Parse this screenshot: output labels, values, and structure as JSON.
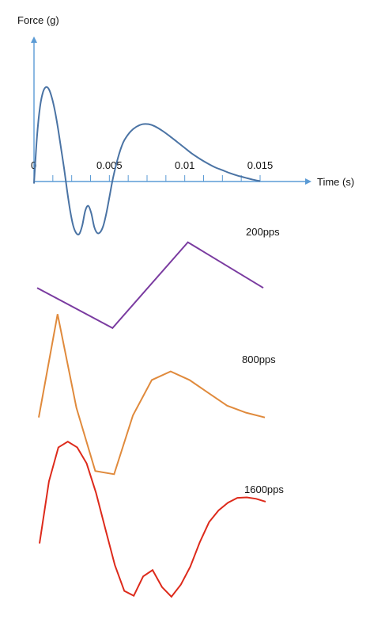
{
  "chart_data": [
    {
      "type": "line",
      "xlabel": "Time (s)",
      "ylabel": "Force (g)",
      "x_tick_labels": [
        {
          "x": 0,
          "label": "0"
        },
        {
          "x": 0.005,
          "label": "0.005"
        },
        {
          "x": 0.01,
          "label": "0.01"
        },
        {
          "x": 0.015,
          "label": "0.015"
        }
      ],
      "x_minor_ticks": [
        0.00125,
        0.0025,
        0.00375,
        0.005,
        0.00625,
        0.0075,
        0.00875,
        0.01,
        0.01125,
        0.0125,
        0.01375,
        0.015
      ],
      "xlim": [
        0,
        0.0175
      ],
      "ylim": [
        -1.0,
        2.3
      ],
      "grid": false,
      "color": "#4a73a4",
      "series": [
        {
          "x": [
            0,
            0.0002,
            0.0004,
            0.0006,
            0.0008,
            0.001,
            0.0012,
            0.0014,
            0.0016,
            0.0018,
            0.002,
            0.0022,
            0.0024,
            0.0026,
            0.0028,
            0.003,
            0.0032,
            0.0034,
            0.0036,
            0.0038,
            0.004,
            0.0042,
            0.0044,
            0.0046,
            0.0048,
            0.005,
            0.0052,
            0.0054,
            0.0056,
            0.0058,
            0.006,
            0.0064,
            0.0068,
            0.0072,
            0.0076,
            0.008,
            0.0085,
            0.009,
            0.0095,
            0.01,
            0.0105,
            0.011,
            0.0115,
            0.012,
            0.0125,
            0.013,
            0.0135,
            0.014,
            0.0145,
            0.015
          ],
          "values": [
            0,
            0.95,
            1.55,
            1.85,
            1.95,
            1.9,
            1.72,
            1.45,
            1.1,
            0.7,
            0.3,
            -0.15,
            -0.55,
            -0.85,
            -1.0,
            -1.02,
            -0.85,
            -0.55,
            -0.45,
            -0.6,
            -0.88,
            -1.0,
            -0.98,
            -0.85,
            -0.6,
            -0.28,
            0.05,
            0.32,
            0.55,
            0.74,
            0.88,
            1.05,
            1.15,
            1.2,
            1.2,
            1.16,
            1.07,
            0.96,
            0.84,
            0.72,
            0.6,
            0.5,
            0.41,
            0.33,
            0.27,
            0.21,
            0.16,
            0.12,
            0.08,
            0.05
          ]
        }
      ]
    },
    {
      "type": "line",
      "title": "200pps",
      "color": "#7a3ba0",
      "axes_visible": false,
      "xlim": [
        0,
        0.015
      ],
      "ylim": [
        -0.9,
        1.15
      ],
      "series": [
        {
          "x": [
            0,
            0.005,
            0.01,
            0.015
          ],
          "values": [
            0,
            -0.88,
            1.0,
            0
          ]
        }
      ]
    },
    {
      "type": "line",
      "title": "800pps",
      "color": "#e08a3c",
      "axes_visible": false,
      "xlim": [
        0,
        0.015
      ],
      "ylim": [
        -1.1,
        1.95
      ],
      "series": [
        {
          "x": [
            0,
            0.00125,
            0.0025,
            0.00375,
            0.005,
            0.00625,
            0.0075,
            0.00875,
            0.01,
            0.01125,
            0.0125,
            0.01375,
            0.015
          ],
          "values": [
            0,
            1.93,
            0.18,
            -1.0,
            -1.06,
            0.04,
            0.7,
            0.86,
            0.7,
            0.46,
            0.22,
            0.09,
            0
          ]
        }
      ]
    },
    {
      "type": "line",
      "title": "1600pps",
      "color": "#dd2a1b",
      "axes_visible": false,
      "xlim": [
        0,
        0.015
      ],
      "ylim": [
        -1.2,
        2.2
      ],
      "series": [
        {
          "x": [
            0,
            0.000625,
            0.00125,
            0.001875,
            0.0025,
            0.003125,
            0.00375,
            0.004375,
            0.005,
            0.005625,
            0.00625,
            0.006875,
            0.0075,
            0.008125,
            0.00875,
            0.009375,
            0.01,
            0.010625,
            0.01125,
            0.011875,
            0.0125,
            0.013125,
            0.01375,
            0.014375,
            0.015
          ],
          "values": [
            0,
            1.28,
            1.98,
            2.1,
            1.98,
            1.65,
            1.04,
            0.29,
            -0.45,
            -0.98,
            -1.08,
            -0.68,
            -0.55,
            -0.9,
            -1.1,
            -0.85,
            -0.48,
            0.02,
            0.44,
            0.68,
            0.84,
            0.94,
            0.95,
            0.92,
            0.86
          ]
        }
      ]
    }
  ]
}
